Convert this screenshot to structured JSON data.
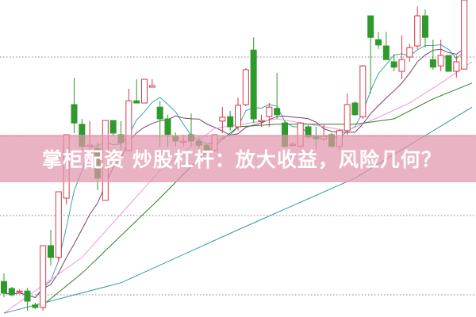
{
  "headline": "掌柜配资 炒股杠杆：放大收益，风险几何？",
  "chart_data": {
    "type": "candlestick",
    "title": "",
    "xlabel": "",
    "ylabel": "",
    "ylim": [
      0,
      100
    ],
    "grid": "horizontal dotted",
    "colors": {
      "up": "#d9364a",
      "down": "#2e9a2e",
      "grid": "#999999",
      "banner": "#e296ac"
    },
    "candles": [
      [
        11.2,
        13.8,
        6.2,
        7.5
      ],
      [
        9,
        9.5,
        6.5,
        7
      ],
      [
        8,
        8.8,
        7.5,
        8.2
      ],
      [
        8.2,
        9.2,
        2,
        5
      ],
      [
        3.8,
        4.5,
        2.5,
        3
      ],
      [
        3,
        22.5,
        2,
        22.5
      ],
      [
        22.5,
        27.5,
        16.2,
        18.8
      ],
      [
        18.8,
        39.5,
        17.5,
        39.5
      ],
      [
        37.5,
        57.5,
        35.5,
        57.5
      ],
      [
        67,
        75.5,
        58,
        61.2
      ],
      [
        60.8,
        62.5,
        52.5,
        53.8
      ],
      [
        53.8,
        61.8,
        53.8,
        54.2
      ],
      [
        53.2,
        55,
        40,
        43.8
      ],
      [
        36.8,
        62,
        36.8,
        62
      ],
      [
        62,
        62,
        57,
        58
      ],
      [
        57.5,
        61.8,
        52.5,
        55
      ],
      [
        52.5,
        72,
        52.5,
        68.2
      ],
      [
        68.2,
        75,
        67.5,
        67.5
      ],
      [
        67.5,
        75,
        67.5,
        75
      ],
      [
        72.5,
        75,
        72.5,
        73
      ],
      [
        66.2,
        68.2,
        53.8,
        62.5
      ],
      [
        62.5,
        63.8,
        53.8,
        57.5
      ],
      [
        57,
        58.2,
        53.8,
        55.5
      ],
      [
        55.2,
        57.5,
        53.8,
        55.5
      ],
      [
        57.5,
        64.2,
        53.8,
        55.5
      ],
      [
        55.5,
        57,
        53,
        54.2
      ],
      [
        54.2,
        54.5,
        52,
        52.5
      ],
      [
        52.5,
        57.5,
        52,
        57.5
      ],
      [
        61.8,
        66.2,
        58,
        63
      ],
      [
        63.2,
        65,
        58.8,
        60
      ],
      [
        60,
        69.2,
        58.8,
        66.8
      ],
      [
        67,
        78.5,
        66.5,
        78
      ],
      [
        84.2,
        88.2,
        61.2,
        62.5
      ],
      [
        61.8,
        63.8,
        60,
        62
      ],
      [
        63.2,
        67.5,
        60,
        66.2
      ],
      [
        65.8,
        77,
        62.5,
        63.8
      ],
      [
        61.2,
        62,
        53.5,
        53.8
      ],
      [
        54.2,
        55,
        53.8,
        54.5
      ],
      [
        53.8,
        61.5,
        53.5,
        61.2
      ],
      [
        60,
        60.5,
        56.2,
        56.8
      ],
      [
        57,
        60,
        53,
        56.2
      ],
      [
        56.2,
        60.8,
        55.5,
        57
      ],
      [
        57.5,
        58,
        53.5,
        53.8
      ],
      [
        53.8,
        59.2,
        52.5,
        58.8
      ],
      [
        58.8,
        70.5,
        57.5,
        67
      ],
      [
        67.5,
        68,
        63.5,
        63.8
      ],
      [
        63.2,
        79.5,
        62.5,
        79.2
      ],
      [
        95,
        95,
        70.5,
        88.2
      ],
      [
        87.5,
        90,
        84.5,
        85.8
      ],
      [
        85.5,
        90,
        81.2,
        81.2
      ],
      [
        80.5,
        83,
        77.5,
        78.8
      ],
      [
        77.5,
        88.8,
        75,
        81.2
      ],
      [
        82,
        86.2,
        80.5,
        85
      ],
      [
        85.5,
        98,
        84.5,
        95
      ],
      [
        95,
        97,
        85,
        88.2
      ],
      [
        81.2,
        87.5,
        78,
        78.8
      ],
      [
        79.2,
        87.5,
        77.5,
        82.5
      ],
      [
        82.5,
        82.5,
        77.5,
        77.5
      ],
      [
        77.5,
        82.5,
        75.5,
        80.5
      ],
      [
        78.2,
        100,
        78.2,
        100
      ]
    ],
    "candle_fields": [
      "open",
      "high",
      "low",
      "close"
    ],
    "moving_averages": [
      {
        "color": "#3fa3a8",
        "period": 5
      },
      {
        "color": "#7a3f6a",
        "period": 10
      },
      {
        "color": "#e89ad8",
        "points": [
          [
            0,
            1.2
          ],
          [
            10,
            18.8
          ],
          [
            20,
            46.2
          ],
          [
            27,
            59.5
          ],
          [
            35,
            62.5
          ],
          [
            44,
            58.8
          ],
          [
            48,
            63
          ],
          [
            52,
            67.5
          ],
          [
            56,
            73.8
          ],
          [
            60,
            80.5
          ]
        ]
      },
      {
        "color": "#2f7a2f",
        "points": [
          [
            5,
            3.8
          ],
          [
            10,
            13.8
          ],
          [
            20,
            37.5
          ],
          [
            25,
            50
          ],
          [
            30,
            60
          ],
          [
            35,
            60.8
          ],
          [
            45,
            60.8
          ],
          [
            50,
            62.5
          ],
          [
            55,
            68.8
          ],
          [
            60,
            73.8
          ]
        ]
      },
      {
        "color": "#2f9a9a",
        "points": [
          [
            0,
            1.2
          ],
          [
            15,
            10.8
          ],
          [
            30,
            27.5
          ],
          [
            45,
            43.8
          ],
          [
            60,
            66.2
          ]
        ]
      }
    ]
  }
}
